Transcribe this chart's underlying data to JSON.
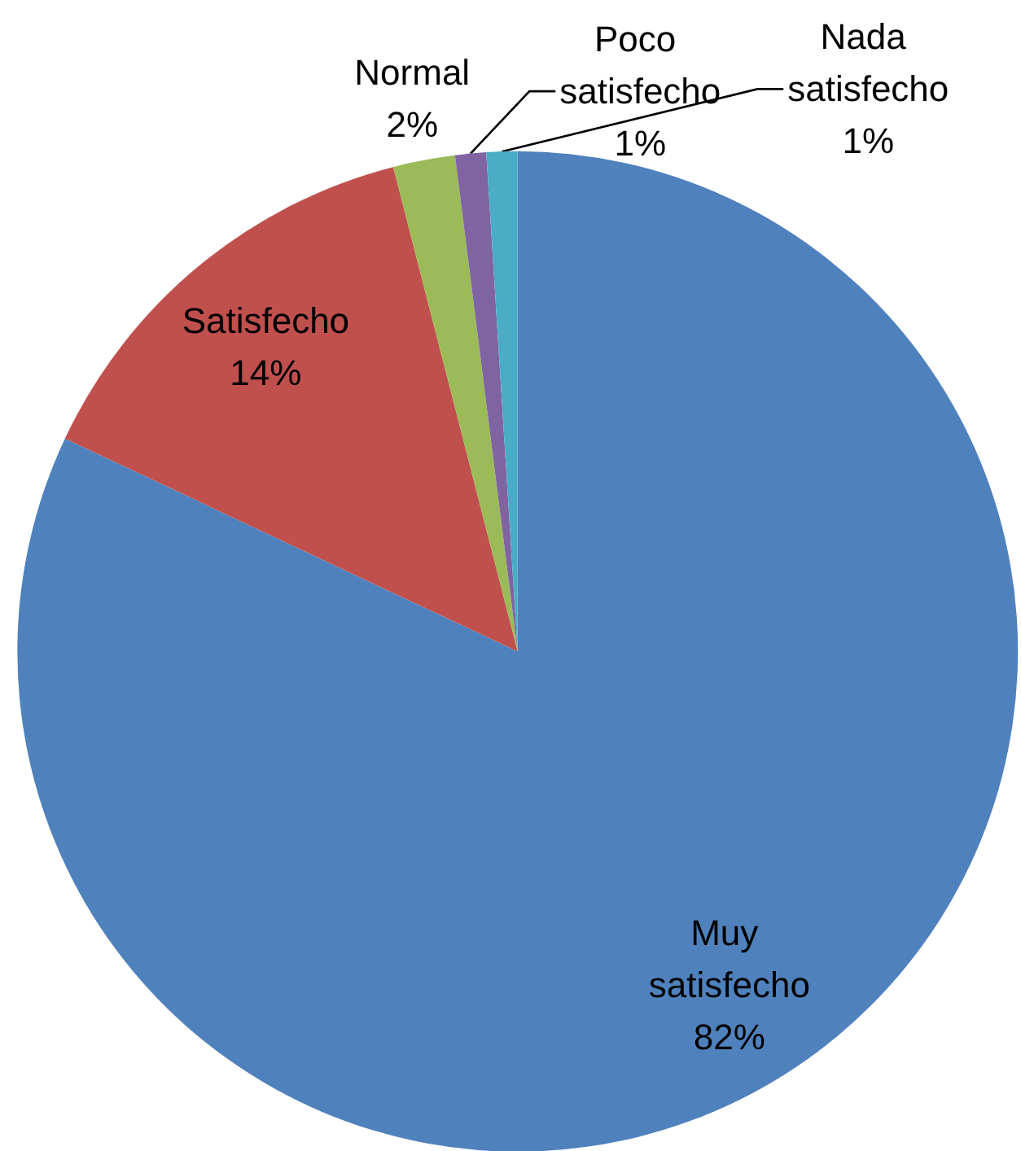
{
  "chart_data": {
    "type": "pie",
    "categories": [
      "Muy satisfecho",
      "Satisfecho",
      "Normal",
      "Poco satisfecho",
      "Nada satisfecho"
    ],
    "values": [
      82,
      14,
      2,
      1,
      1
    ],
    "value_labels": [
      "82%",
      "14%",
      "2%",
      "1%",
      "1%"
    ],
    "colors": [
      "#4f81bd",
      "#c0504d",
      "#9bbb59",
      "#8064a2",
      "#4bacc6"
    ]
  }
}
